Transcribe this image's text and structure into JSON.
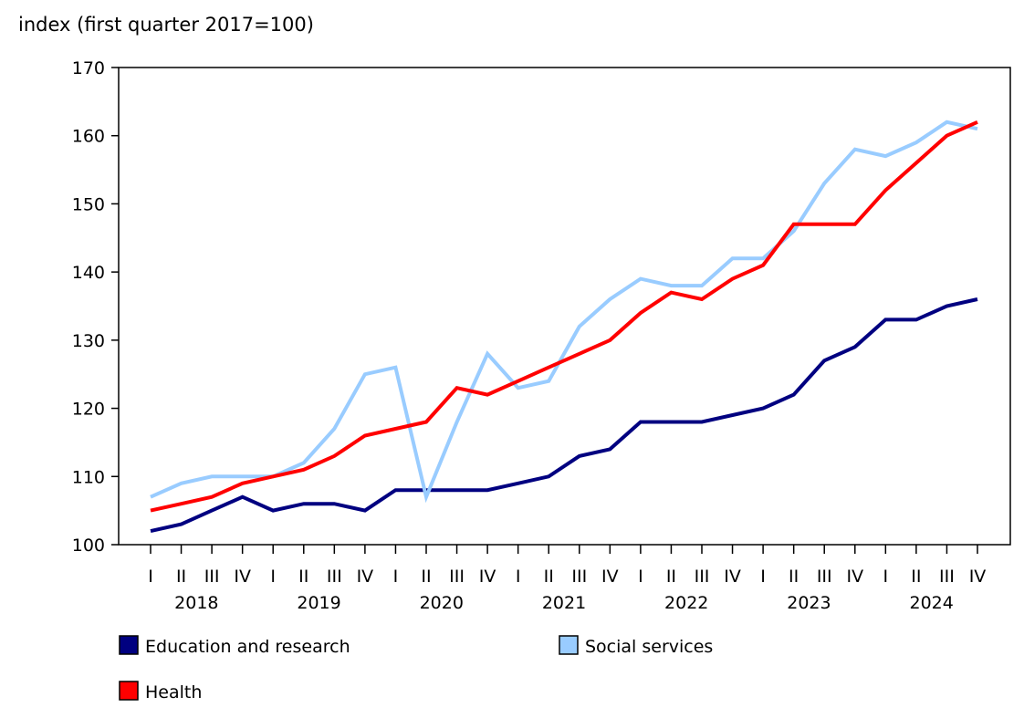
{
  "chart_data": {
    "type": "line",
    "ylabel": "index (first quarter 2017=100)",
    "ylim": [
      100,
      170
    ],
    "yticks": [
      100,
      110,
      120,
      130,
      140,
      150,
      160,
      170
    ],
    "quarter_labels": [
      "I",
      "II",
      "III",
      "IV",
      "I",
      "II",
      "III",
      "IV",
      "I",
      "II",
      "III",
      "IV",
      "I",
      "II",
      "III",
      "IV",
      "I",
      "II",
      "III",
      "IV",
      "I",
      "II",
      "III",
      "IV",
      "I",
      "II",
      "III",
      "IV"
    ],
    "years": [
      "2018",
      "2019",
      "2020",
      "2021",
      "2022",
      "2023",
      "2024"
    ],
    "grid": false,
    "legend_placement": "bottom",
    "series": [
      {
        "name": "Education and research",
        "color": "#000080",
        "values": [
          102,
          103,
          105,
          107,
          105,
          106,
          106,
          105,
          108,
          108,
          108,
          108,
          109,
          110,
          113,
          114,
          118,
          118,
          118,
          119,
          120,
          122,
          127,
          129,
          133,
          133,
          135,
          136
        ]
      },
      {
        "name": "Social services",
        "color": "#99ccff",
        "values": [
          107,
          109,
          110,
          110,
          110,
          112,
          117,
          125,
          126,
          107,
          118,
          128,
          123,
          124,
          132,
          136,
          139,
          138,
          138,
          142,
          142,
          146,
          153,
          158,
          157,
          159,
          162,
          161
        ]
      },
      {
        "name": "Health",
        "color": "#ff0000",
        "values": [
          105,
          106,
          107,
          109,
          110,
          111,
          113,
          116,
          117,
          118,
          123,
          122,
          124,
          126,
          128,
          130,
          134,
          137,
          136,
          139,
          141,
          147,
          147,
          147,
          152,
          156,
          160,
          162
        ]
      }
    ]
  }
}
